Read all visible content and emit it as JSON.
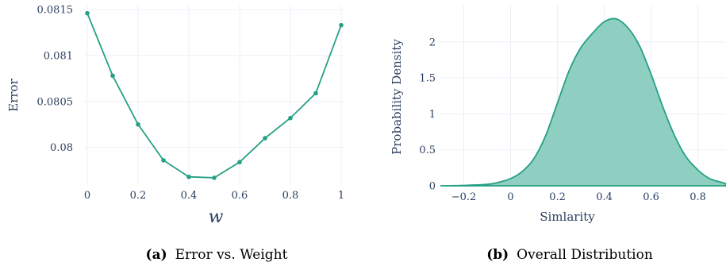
{
  "captions": [
    {
      "label": "(a)",
      "text": "Error vs. Weight"
    },
    {
      "label": "(b)",
      "text": "Overall Distribution"
    }
  ],
  "colors": {
    "line": "#26a085",
    "fill": "#8fcfc1",
    "grid": "#ebf0f8",
    "text": "#2a3f5f"
  },
  "chart_data": [
    {
      "type": "line",
      "xlabel": "w",
      "ylabel": "Error",
      "x": [
        0,
        0.1,
        0.2,
        0.3,
        0.4,
        0.5,
        0.6,
        0.7,
        0.8,
        0.9,
        1.0
      ],
      "series": [
        {
          "values": [
            0.08146,
            0.08078,
            0.08025,
            0.07986,
            0.07968,
            0.07967,
            0.07984,
            0.0801,
            0.08032,
            0.08059,
            0.08133
          ]
        }
      ],
      "xticks": [
        "0",
        "0.2",
        "0.4",
        "0.6",
        "0.8",
        "1"
      ],
      "yticks": [
        "0.08",
        "0.0805",
        "0.081",
        "0.0815"
      ],
      "xlim": [
        0,
        1
      ],
      "ylim": [
        0.0796,
        0.0815
      ],
      "grid": true
    },
    {
      "type": "area",
      "xlabel": "Simlarity",
      "ylabel": "Probability Density",
      "x": [
        -0.3,
        -0.2,
        -0.1,
        -0.05,
        0.0,
        0.05,
        0.1,
        0.15,
        0.2,
        0.25,
        0.3,
        0.35,
        0.4,
        0.45,
        0.5,
        0.55,
        0.6,
        0.65,
        0.7,
        0.75,
        0.8,
        0.85,
        0.9,
        0.92
      ],
      "series": [
        {
          "values": [
            0.0,
            0.005,
            0.02,
            0.05,
            0.1,
            0.2,
            0.38,
            0.7,
            1.15,
            1.6,
            1.92,
            2.12,
            2.28,
            2.32,
            2.2,
            1.95,
            1.55,
            1.1,
            0.7,
            0.4,
            0.22,
            0.1,
            0.05,
            0.03
          ]
        }
      ],
      "xticks": [
        "−0.2",
        "0",
        "0.2",
        "0.4",
        "0.6",
        "0.8"
      ],
      "yticks": [
        "0",
        "0.5",
        "1",
        "1.5",
        "2"
      ],
      "xlim": [
        -0.3,
        0.92
      ],
      "ylim": [
        0,
        2.45
      ],
      "grid": true
    }
  ]
}
